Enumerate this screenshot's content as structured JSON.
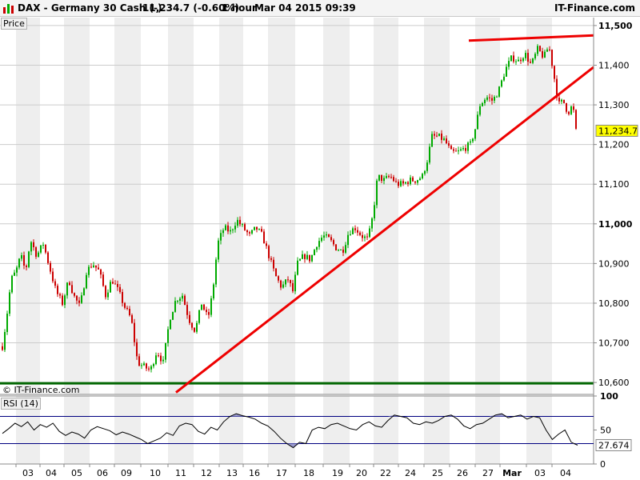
{
  "header": {
    "symbol": "DAX - Germany 30 Cash (-)",
    "price_change": "11,234.7 (-0.60%)",
    "timeframe": "1 hour",
    "datetime": "Mar 04 2015 09:39",
    "brand": "IT-Finance.com"
  },
  "price_panel_label": "Price",
  "rsi_panel_label": "RSI (14)",
  "copyright": "© IT-Finance.com",
  "last_price_label": "11,234.7",
  "last_rsi_label": "27.674",
  "colors": {
    "up": "#00aa00",
    "down": "#cc0000",
    "trendline": "#ee0000",
    "support": "#006600",
    "rsi_line": "#000000",
    "rsi_band": "#000080",
    "rsi_fill": "#9999cc",
    "band": "#eeeeee",
    "grid": "#cccccc"
  },
  "chart_data": [
    {
      "type": "candlestick",
      "title": "DAX - Germany 30 Cash (-)",
      "ylim": [
        10570,
        11520
      ],
      "yticks": [
        10600,
        10700,
        10800,
        10900,
        11000,
        11100,
        11200,
        11300,
        11400,
        11500
      ],
      "ytick_labels": [
        "10,600",
        "10,700",
        "10,800",
        "10,900",
        "11,000",
        "11,100",
        "11,200",
        "11,300",
        "11,400",
        "11,500"
      ],
      "x_labels": [
        "03",
        "04",
        "05",
        "06",
        "09",
        "10",
        "11",
        "12",
        "13",
        "16",
        "17",
        "18",
        "19",
        "20",
        "22",
        "24",
        "25",
        "26",
        "27",
        "Mar",
        "03",
        "04"
      ],
      "close_path": [
        [
          0,
          10650
        ],
        [
          8,
          10760
        ],
        [
          14,
          10860
        ],
        [
          20,
          10880
        ],
        [
          26,
          10920
        ],
        [
          32,
          10880
        ],
        [
          38,
          10960
        ],
        [
          46,
          10920
        ],
        [
          54,
          10950
        ],
        [
          62,
          10890
        ],
        [
          70,
          10830
        ],
        [
          78,
          10800
        ],
        [
          86,
          10860
        ],
        [
          92,
          10820
        ],
        [
          100,
          10790
        ],
        [
          108,
          10880
        ],
        [
          116,
          10900
        ],
        [
          124,
          10880
        ],
        [
          132,
          10820
        ],
        [
          140,
          10860
        ],
        [
          148,
          10830
        ],
        [
          156,
          10790
        ],
        [
          164,
          10760
        ],
        [
          172,
          10650
        ],
        [
          180,
          10640
        ],
        [
          188,
          10630
        ],
        [
          196,
          10680
        ],
        [
          204,
          10650
        ],
        [
          212,
          10760
        ],
        [
          220,
          10810
        ],
        [
          228,
          10820
        ],
        [
          236,
          10760
        ],
        [
          244,
          10730
        ],
        [
          252,
          10800
        ],
        [
          260,
          10760
        ],
        [
          266,
          10830
        ],
        [
          272,
          10950
        ],
        [
          280,
          10990
        ],
        [
          288,
          10980
        ],
        [
          296,
          11010
        ],
        [
          304,
          10990
        ],
        [
          312,
          10970
        ],
        [
          320,
          10990
        ],
        [
          328,
          10970
        ],
        [
          336,
          10920
        ],
        [
          344,
          10870
        ],
        [
          352,
          10840
        ],
        [
          360,
          10860
        ],
        [
          366,
          10830
        ],
        [
          372,
          10900
        ],
        [
          380,
          10920
        ],
        [
          388,
          10910
        ],
        [
          396,
          10950
        ],
        [
          404,
          10970
        ],
        [
          412,
          10960
        ],
        [
          420,
          10940
        ],
        [
          428,
          10930
        ],
        [
          436,
          10980
        ],
        [
          444,
          10990
        ],
        [
          452,
          10970
        ],
        [
          460,
          10960
        ],
        [
          466,
          11020
        ],
        [
          472,
          11120
        ],
        [
          480,
          11110
        ],
        [
          488,
          11120
        ],
        [
          496,
          11100
        ],
        [
          504,
          11100
        ],
        [
          512,
          11110
        ],
        [
          520,
          11110
        ],
        [
          528,
          11120
        ],
        [
          534,
          11160
        ],
        [
          540,
          11220
        ],
        [
          548,
          11220
        ],
        [
          556,
          11210
        ],
        [
          564,
          11180
        ],
        [
          572,
          11180
        ],
        [
          580,
          11190
        ],
        [
          588,
          11200
        ],
        [
          594,
          11240
        ],
        [
          600,
          11300
        ],
        [
          608,
          11320
        ],
        [
          616,
          11310
        ],
        [
          624,
          11340
        ],
        [
          632,
          11390
        ],
        [
          640,
          11420
        ],
        [
          648,
          11410
        ],
        [
          656,
          11430
        ],
        [
          664,
          11400
        ],
        [
          672,
          11440
        ],
        [
          680,
          11420
        ],
        [
          686,
          11450
        ],
        [
          692,
          11380
        ],
        [
          698,
          11300
        ],
        [
          704,
          11310
        ],
        [
          710,
          11280
        ],
        [
          716,
          11300
        ],
        [
          722,
          11200
        ]
      ],
      "support_line": 10598,
      "trendlines": [
        {
          "from": [
            220,
            10575
          ],
          "to": [
            742,
            11395
          ]
        },
        {
          "from": [
            586,
            11462
          ],
          "to": [
            742,
            11475
          ]
        }
      ],
      "last_price": 11234.7
    },
    {
      "type": "line",
      "title": "RSI (14)",
      "ylim": [
        0,
        100
      ],
      "yticks": [
        0,
        50,
        100
      ],
      "ytick_labels": [
        "0",
        "50",
        "100"
      ],
      "bands": [
        30,
        70
      ],
      "values": [
        45,
        52,
        60,
        55,
        62,
        50,
        58,
        54,
        60,
        48,
        42,
        47,
        44,
        38,
        50,
        55,
        52,
        49,
        43,
        47,
        44,
        40,
        36,
        30,
        34,
        38,
        46,
        42,
        56,
        60,
        58,
        48,
        44,
        54,
        50,
        62,
        70,
        74,
        71,
        69,
        66,
        60,
        56,
        48,
        38,
        30,
        24,
        32,
        30,
        50,
        54,
        52,
        58,
        60,
        56,
        52,
        50,
        58,
        62,
        56,
        54,
        64,
        72,
        70,
        68,
        60,
        58,
        62,
        60,
        64,
        70,
        72,
        66,
        56,
        52,
        58,
        60,
        66,
        72,
        74,
        68,
        70,
        72,
        66,
        70,
        68,
        50,
        36,
        44,
        50,
        32,
        27.674
      ],
      "last_value": 27.674
    }
  ]
}
